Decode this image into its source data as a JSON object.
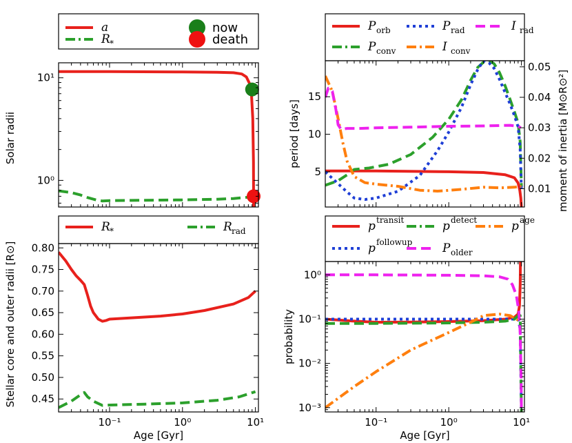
{
  "chart_data": [
    {
      "id": "radii",
      "type": "line",
      "ylabel": "Solar radii",
      "xscale": "log",
      "yscale": "log",
      "xlim": [
        0.02,
        11
      ],
      "ylim": [
        0.55,
        14
      ],
      "yticks": [
        {
          "v": 1,
          "label": "10⁰"
        },
        {
          "v": 10,
          "label": "10¹"
        }
      ],
      "legend": [
        {
          "key": "a",
          "label": "a",
          "sub": "",
          "style": "solid",
          "color": "#e8211c"
        },
        {
          "key": "rstar",
          "label": "R",
          "sub": "*",
          "style": "dashdot",
          "color": "#2ca02c"
        },
        {
          "key": "now",
          "label": "now",
          "marker": "circle",
          "color": "#1a7f1a"
        },
        {
          "key": "death",
          "label": "death",
          "marker": "circle",
          "color": "#ee1111"
        }
      ],
      "series": [
        {
          "key": "a",
          "color": "#e8211c",
          "style": "solid",
          "x": [
            0.02,
            0.1,
            1,
            3,
            5,
            6.5,
            7.5,
            8.3,
            8.8,
            9.2,
            9.4,
            9.45
          ],
          "y": [
            11.5,
            11.5,
            11.4,
            11.3,
            11.2,
            10.9,
            10.2,
            8.8,
            7.3,
            4.0,
            1.5,
            0.55
          ]
        },
        {
          "key": "rstar",
          "color": "#2ca02c",
          "style": "dashed",
          "x": [
            0.02,
            0.03,
            0.04,
            0.05,
            0.07,
            0.08,
            0.1,
            0.2,
            0.5,
            1,
            3,
            5,
            8,
            9.4
          ],
          "y": [
            0.79,
            0.76,
            0.72,
            0.68,
            0.636,
            0.63,
            0.635,
            0.638,
            0.642,
            0.645,
            0.655,
            0.665,
            0.685,
            0.7
          ]
        }
      ],
      "markers": [
        {
          "key": "now",
          "x": 9.0,
          "y": 7.7,
          "color": "#1a7f1a"
        },
        {
          "key": "death",
          "x": 9.45,
          "y": 0.7,
          "color": "#ee1111"
        }
      ]
    },
    {
      "id": "core",
      "type": "line",
      "xlabel": "Age [Gyr]",
      "ylabel": "Stellar core and outer radii [R⊙]",
      "xscale": "log",
      "yscale": "linear",
      "xlim": [
        0.02,
        11
      ],
      "ylim": [
        0.42,
        0.81
      ],
      "xticks": [
        {
          "v": 0.1,
          "label": "10⁻¹"
        },
        {
          "v": 1,
          "label": "10⁰"
        },
        {
          "v": 10,
          "label": "10¹"
        }
      ],
      "yticks": [
        {
          "v": 0.45,
          "label": "0.45"
        },
        {
          "v": 0.5,
          "label": "0.50"
        },
        {
          "v": 0.55,
          "label": "0.55"
        },
        {
          "v": 0.6,
          "label": "0.60"
        },
        {
          "v": 0.65,
          "label": "0.65"
        },
        {
          "v": 0.7,
          "label": "0.70"
        },
        {
          "v": 0.75,
          "label": "0.75"
        },
        {
          "v": 0.8,
          "label": "0.80"
        }
      ],
      "legend": [
        {
          "key": "rstar",
          "label": "R",
          "sub": "*",
          "style": "solid",
          "color": "#e8211c"
        },
        {
          "key": "rrad",
          "label": "R",
          "sub": "rad",
          "style": "dashdot",
          "color": "#2ca02c"
        }
      ],
      "series": [
        {
          "key": "rstar",
          "color": "#e8211c",
          "style": "solid",
          "x": [
            0.02,
            0.025,
            0.03,
            0.035,
            0.04,
            0.045,
            0.05,
            0.055,
            0.06,
            0.07,
            0.08,
            0.09,
            0.1,
            0.2,
            0.5,
            1,
            2,
            5,
            8,
            10
          ],
          "y": [
            0.79,
            0.77,
            0.75,
            0.735,
            0.725,
            0.715,
            0.69,
            0.665,
            0.65,
            0.635,
            0.63,
            0.632,
            0.635,
            0.638,
            0.642,
            0.647,
            0.655,
            0.67,
            0.685,
            0.7
          ]
        },
        {
          "key": "rrad",
          "color": "#2ca02c",
          "style": "dashed",
          "x": [
            0.02,
            0.03,
            0.04,
            0.045,
            0.05,
            0.06,
            0.08,
            0.1,
            0.3,
            1,
            3,
            6,
            10
          ],
          "y": [
            0.43,
            0.445,
            0.46,
            0.465,
            0.455,
            0.445,
            0.435,
            0.436,
            0.438,
            0.441,
            0.447,
            0.455,
            0.467
          ]
        }
      ]
    },
    {
      "id": "period",
      "type": "line",
      "ylabel": "period [days]",
      "y2label": "moment of inertia [M⊙R⊙²]",
      "xscale": "log",
      "yscale": "linear",
      "xlim": [
        0.02,
        11
      ],
      "ylim": [
        0.3,
        19.8
      ],
      "y2lim": [
        0.004,
        0.052
      ],
      "yticks": [
        {
          "v": 5,
          "label": "5"
        },
        {
          "v": 10,
          "label": "10"
        },
        {
          "v": 15,
          "label": "15"
        }
      ],
      "y2ticks": [
        {
          "v": 0.01,
          "label": "0.01"
        },
        {
          "v": 0.02,
          "label": "0.02"
        },
        {
          "v": 0.03,
          "label": "0.03"
        },
        {
          "v": 0.04,
          "label": "0.04"
        },
        {
          "v": 0.05,
          "label": "0.05"
        }
      ],
      "legend": [
        {
          "key": "porb",
          "label": "P",
          "sub": "orb",
          "style": "solid",
          "color": "#e8211c"
        },
        {
          "key": "pconv",
          "label": "P",
          "sub": "conv",
          "style": "dashdot",
          "color": "#2ca02c"
        },
        {
          "key": "prad",
          "label": "P",
          "sub": "rad",
          "style": "dotted",
          "color": "#1f3fd6"
        },
        {
          "key": "iconv",
          "label": "I",
          "sub": "conv",
          "style": "dashdot",
          "color": "#ff7f0e"
        },
        {
          "key": "irad",
          "label": "I",
          "sub": "rad",
          "style": "dashed",
          "color": "#ee22ee"
        }
      ],
      "series": [
        {
          "key": "porb",
          "axis": "y",
          "color": "#e8211c",
          "style": "solid",
          "x": [
            0.02,
            0.1,
            1,
            3,
            6,
            8,
            9,
            9.5,
            9.8,
            10
          ],
          "y": [
            5.1,
            5.1,
            5.0,
            4.9,
            4.6,
            4.2,
            3.5,
            2.5,
            1.5,
            0.3
          ]
        },
        {
          "key": "pconv",
          "axis": "y",
          "color": "#2ca02c",
          "style": "dashed",
          "x": [
            0.02,
            0.03,
            0.04,
            0.05,
            0.08,
            0.15,
            0.3,
            0.6,
            1,
            1.5,
            2,
            2.5,
            3,
            3.6,
            4.2,
            5,
            6,
            7,
            8,
            9,
            9.6,
            10
          ],
          "y": [
            3.2,
            3.8,
            4.6,
            5.3,
            5.5,
            6.0,
            7.3,
            9.6,
            12.0,
            14.6,
            17.2,
            18.9,
            19.6,
            19.8,
            19.4,
            18.2,
            16.4,
            14.6,
            13.0,
            11.5,
            9.0,
            3.0
          ]
        },
        {
          "key": "prad",
          "axis": "y",
          "color": "#1f3fd6",
          "style": "dotted",
          "x": [
            0.02,
            0.03,
            0.04,
            0.05,
            0.07,
            0.1,
            0.2,
            0.4,
            0.7,
            1,
            1.5,
            2,
            2.5,
            3,
            3.6,
            4.2,
            5,
            6,
            7,
            8,
            9,
            9.6,
            10
          ],
          "y": [
            5.0,
            3.4,
            2.3,
            1.5,
            1.3,
            1.5,
            2.4,
            4.5,
            7.8,
            10.3,
            13.6,
            16.6,
            18.6,
            19.8,
            19.5,
            18.8,
            17.3,
            15.5,
            14.0,
            12.5,
            11.0,
            8.0,
            2.5
          ]
        },
        {
          "key": "iconv",
          "axis": "y2",
          "color": "#ff7f0e",
          "style": "dashdot",
          "x": [
            0.02,
            0.025,
            0.03,
            0.035,
            0.04,
            0.05,
            0.07,
            0.1,
            0.2,
            0.4,
            0.7,
            1.5,
            3,
            5,
            8,
            10
          ],
          "y": [
            0.047,
            0.042,
            0.033,
            0.025,
            0.019,
            0.014,
            0.012,
            0.0115,
            0.0108,
            0.0095,
            0.0092,
            0.0098,
            0.0105,
            0.0103,
            0.0105,
            0.0108
          ]
        },
        {
          "key": "irad",
          "axis": "y2",
          "color": "#ee22ee",
          "style": "dashed",
          "x": [
            0.02,
            0.022,
            0.025,
            0.028,
            0.03,
            0.033,
            0.04,
            0.06,
            0.1,
            0.3,
            1,
            3,
            7,
            9,
            9.8
          ],
          "y": [
            0.04,
            0.043,
            0.042,
            0.036,
            0.031,
            0.0295,
            0.0298,
            0.0298,
            0.03,
            0.0302,
            0.0305,
            0.0306,
            0.0308,
            0.0305,
            0.03
          ]
        }
      ]
    },
    {
      "id": "prob",
      "type": "line",
      "xlabel": "Age [Gyr]",
      "ylabel": "probability",
      "xscale": "log",
      "yscale": "log",
      "xlim": [
        0.02,
        11
      ],
      "ylim": [
        0.0008,
        2
      ],
      "xticks": [
        {
          "v": 0.1,
          "label": "10⁻¹"
        },
        {
          "v": 1,
          "label": "10⁰"
        },
        {
          "v": 10,
          "label": "10¹"
        }
      ],
      "yticks": [
        {
          "v": 0.001,
          "label": "10⁻³"
        },
        {
          "v": 0.01,
          "label": "10⁻²"
        },
        {
          "v": 0.1,
          "label": "10⁻¹"
        },
        {
          "v": 1,
          "label": "10⁰"
        }
      ],
      "legend": [
        {
          "key": "ptransit",
          "label": "p",
          "sup": "transit",
          "style": "solid",
          "color": "#e8211c"
        },
        {
          "key": "pfollowup",
          "label": "p",
          "sup": "followup",
          "style": "dotted",
          "color": "#1f3fd6"
        },
        {
          "key": "pdetect",
          "label": "p",
          "sup": "detect",
          "style": "dashdot",
          "color": "#2ca02c"
        },
        {
          "key": "polder",
          "label": "P",
          "sub": "older",
          "style": "dashed",
          "color": "#ee22ee"
        },
        {
          "key": "page",
          "label": "p",
          "sup": "age",
          "style": "dashdot",
          "color": "#ff7f0e"
        }
      ],
      "series": [
        {
          "key": "ptransit",
          "color": "#e8211c",
          "style": "solid",
          "x": [
            0.02,
            0.05,
            0.1,
            0.3,
            1,
            3,
            6,
            8,
            9,
            9.4,
            9.6,
            9.7
          ],
          "y": [
            0.1,
            0.09,
            0.085,
            0.086,
            0.088,
            0.092,
            0.1,
            0.11,
            0.13,
            0.2,
            0.6,
            2.0
          ]
        },
        {
          "key": "pfollowup",
          "color": "#1f3fd6",
          "style": "dotted",
          "x": [
            0.02,
            0.1,
            1,
            5,
            8,
            9,
            9.6,
            10
          ],
          "y": [
            0.1,
            0.1,
            0.1,
            0.1,
            0.1,
            0.1,
            0.06,
            0.0008
          ]
        },
        {
          "key": "pdetect",
          "color": "#2ca02c",
          "style": "dashed",
          "x": [
            0.02,
            0.1,
            1,
            3,
            6,
            8,
            9,
            9.6,
            10
          ],
          "y": [
            0.08,
            0.08,
            0.082,
            0.085,
            0.09,
            0.1,
            0.12,
            0.12,
            0.0008
          ]
        },
        {
          "key": "page",
          "color": "#ff7f0e",
          "style": "dashdot",
          "x": [
            0.02,
            0.05,
            0.1,
            0.3,
            1,
            2,
            3,
            5,
            7,
            8.5,
            9.5
          ],
          "y": [
            0.001,
            0.003,
            0.0065,
            0.02,
            0.05,
            0.085,
            0.12,
            0.13,
            0.12,
            0.1,
            0.09
          ]
        },
        {
          "key": "polder",
          "color": "#ee22ee",
          "style": "dashed",
          "x": [
            0.02,
            0.1,
            1,
            3,
            5,
            6.5,
            7.5,
            8.5,
            9.2,
            9.6,
            9.9,
            10
          ],
          "y": [
            1.0,
            1.0,
            0.98,
            0.95,
            0.9,
            0.8,
            0.6,
            0.35,
            0.15,
            0.05,
            0.005,
            0.0008
          ]
        }
      ]
    }
  ]
}
